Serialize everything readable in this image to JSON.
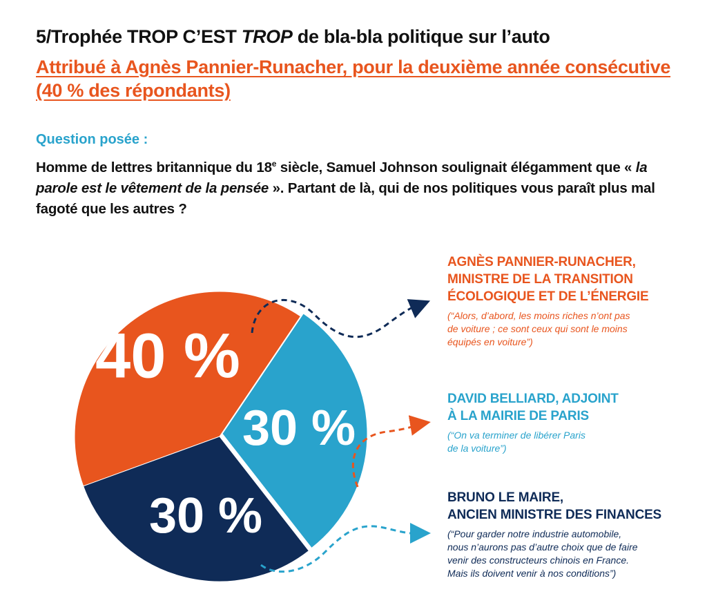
{
  "header": {
    "title_pre": "5/Trophée TROP C’EST ",
    "title_em": "TROP",
    "title_post": " de bla-bla politique sur l’auto",
    "subtitle": "Attribué à Agnès Pannier-Runacher, pour la deuxième année consécutive (40 % des répondants)"
  },
  "question": {
    "label": "Question posée :",
    "text_1": "Homme de lettres britannique du 18",
    "text_sup": "e",
    "text_2": " siècle, Samuel Johnson soulignait élégamment que « ",
    "text_em": "la parole est le vêtement de la pensée",
    "text_3": " ». Partant de là, qui de nos politiques vous paraît plus mal fagoté que les autres ?"
  },
  "chart_data": {
    "type": "pie",
    "title": "",
    "slices": [
      {
        "label": "40 %",
        "value": 40,
        "color": "#e8551e",
        "name": "AGNÈS PANNIER-RUNACHER,\nMINISTRE DE LA TRANSITION\nÉCOLOGIQUE ET DE L’ÉNERGIE",
        "quote": "(“Alors, d’abord, les moins riches n’ont pas\nde voiture ; ce sont ceux qui sont le moins\néquipés en voiture”)"
      },
      {
        "label": "30 %",
        "value": 30,
        "color": "#29a3cc",
        "name": "DAVID BELLIARD, ADJOINT\nÀ LA MAIRIE DE PARIS",
        "quote": "(“On va terminer de libérer Paris\nde la voiture”)"
      },
      {
        "label": "30 %",
        "value": 30,
        "color": "#0f2b57",
        "name": "BRUNO LE MAIRE,\nANCIEN MINISTRE DES FINANCES",
        "quote": "(“Pour garder notre industrie automobile,\nnous n’aurons pas d’autre choix que de faire\nvenir des constructeurs chinois en France.\nMais ils doivent venir à nos conditions”)"
      }
    ]
  }
}
